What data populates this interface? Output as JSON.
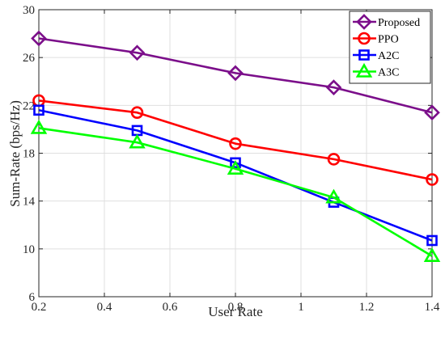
{
  "chart_data": {
    "type": "line",
    "xlabel": "User Rate",
    "ylabel": "Sum-Rate (bps/Hz)",
    "x": [
      0.2,
      0.5,
      0.8,
      1.1,
      1.4
    ],
    "xlim": [
      0.2,
      1.4
    ],
    "ylim": [
      6,
      30
    ],
    "xticks": [
      0.2,
      0.4,
      0.6,
      0.8,
      1,
      1.2,
      1.4
    ],
    "xtick_labels": [
      "0.2",
      "0.4",
      "0.6",
      "0.8",
      "1",
      "1.2",
      "1.4"
    ],
    "yticks": [
      6,
      10,
      14,
      18,
      22,
      26,
      30
    ],
    "ytick_labels": [
      "6",
      "10",
      "14",
      "18",
      "22",
      "26",
      "30"
    ],
    "grid": true,
    "legend_position": "top-right",
    "series": [
      {
        "name": "Proposed",
        "values": [
          27.6,
          26.4,
          24.7,
          23.5,
          21.4
        ],
        "color": "#7B0E8A",
        "marker": "diamond"
      },
      {
        "name": "PPO",
        "values": [
          22.4,
          21.4,
          18.8,
          17.5,
          15.8
        ],
        "color": "#FF0000",
        "marker": "circle"
      },
      {
        "name": "A2C",
        "values": [
          21.6,
          19.9,
          17.2,
          13.9,
          10.7
        ],
        "color": "#0000FF",
        "marker": "square"
      },
      {
        "name": "A3C",
        "values": [
          20.1,
          18.9,
          16.7,
          14.3,
          9.4
        ],
        "color": "#00FF00",
        "marker": "triangle"
      }
    ]
  }
}
